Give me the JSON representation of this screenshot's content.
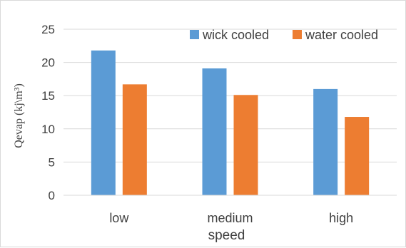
{
  "chart_data": {
    "type": "bar",
    "title": "",
    "xlabel": "speed",
    "ylabel": "Qevap (kj\\m³)",
    "categories": [
      "low",
      "medium",
      "high"
    ],
    "series": [
      {
        "name": "wick cooled",
        "color": "#5b9bd5",
        "values": [
          21.8,
          19.1,
          16.0
        ]
      },
      {
        "name": "water cooled",
        "color": "#ed7d31",
        "values": [
          16.7,
          15.1,
          11.8
        ]
      }
    ],
    "ylim": [
      0,
      25
    ],
    "yticks": [
      0,
      5,
      10,
      15,
      20,
      25
    ],
    "grid": true,
    "legend": "top-right"
  }
}
